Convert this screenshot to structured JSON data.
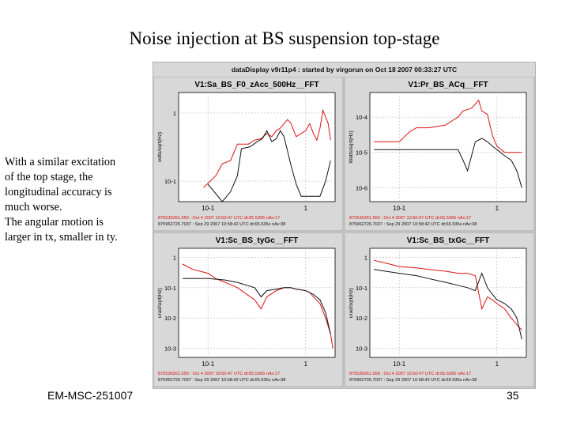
{
  "slide": {
    "title": "Noise injection at BS suspension top-stage",
    "description": [
      "With a similar excitation",
      "of the top stage, the",
      "longitudinal accuracy is",
      "much worse.",
      "The angular motion is",
      "larger in tx, smaller in ty."
    ],
    "footer_left": "EM-MSC-251007",
    "page_number": "35"
  },
  "screen": {
    "header": "dataDisplay v9r11p4 : started by virgorun on Oct 18 2007 00:33:27 UTC"
  },
  "colors": {
    "current": "#dd1111",
    "reference": "#111111",
    "panel_bg": "#ffffff",
    "frame_bg": "#d8d8d8"
  },
  "chart_data": [
    {
      "type": "line",
      "title": "V1:Sa_BS_F0_zAcc_500Hz__FFT",
      "ylabel": "volts/sqrt(Hz)",
      "xscale": "log",
      "yscale": "log",
      "xlim": [
        0.05,
        2
      ],
      "ylim": [
        0.05,
        2
      ],
      "x_ticks": [
        {
          "v": 0.1,
          "label": "10-1"
        },
        {
          "v": 1,
          "label": "1"
        }
      ],
      "y_ticks": [
        {
          "v": 1,
          "label": "1"
        },
        {
          "v": 0.1,
          "label": "10-1"
        }
      ],
      "legend": [
        "875530261.550 : Oct  4 2007 10:50:47 UTC dt:65.5365 nAv:17",
        "875962726.7037 : Sep 29 2007 10:58:42 UTC dt:65.536s nAv:38"
      ],
      "series": [
        {
          "name": "Oct 4 2007",
          "color": "#dd1111",
          "x": [
            0.09,
            0.12,
            0.14,
            0.17,
            0.2,
            0.22,
            0.26,
            0.3,
            0.35,
            0.4,
            0.45,
            0.5,
            0.55,
            0.6,
            0.65,
            0.7,
            0.8,
            0.9,
            1.0,
            1.1,
            1.2,
            1.3,
            1.4,
            1.5,
            1.7,
            1.8
          ],
          "y": [
            0.08,
            0.12,
            0.18,
            0.2,
            0.35,
            0.35,
            0.35,
            0.4,
            0.42,
            0.5,
            0.45,
            0.55,
            0.6,
            0.7,
            0.8,
            0.72,
            0.45,
            0.5,
            0.55,
            0.7,
            0.5,
            0.4,
            0.6,
            1.1,
            0.7,
            0.4
          ]
        },
        {
          "name": "Sep 29 2007",
          "color": "#111111",
          "x": [
            0.1,
            0.14,
            0.17,
            0.2,
            0.22,
            0.27,
            0.32,
            0.36,
            0.4,
            0.45,
            0.5,
            0.55,
            0.6,
            0.7,
            0.8,
            0.9,
            1.0,
            1.2,
            1.4,
            1.6,
            1.8
          ],
          "y": [
            0.09,
            0.05,
            0.07,
            0.12,
            0.3,
            0.32,
            0.38,
            0.42,
            0.55,
            0.38,
            0.42,
            0.55,
            0.45,
            0.18,
            0.09,
            0.06,
            0.06,
            0.06,
            0.06,
            0.1,
            0.2
          ]
        }
      ]
    },
    {
      "type": "line",
      "title": "V1:Pr_BS_ACq__FFT",
      "ylabel": "Watts/sqrt(Hz)",
      "xscale": "log",
      "yscale": "log",
      "xlim": [
        0.05,
        2
      ],
      "ylim": [
        4e-07,
        0.0005
      ],
      "x_ticks": [
        {
          "v": 0.1,
          "label": "10-1"
        },
        {
          "v": 1,
          "label": "1"
        }
      ],
      "y_ticks": [
        {
          "v": 0.0001,
          "label": "10-4"
        },
        {
          "v": 1e-05,
          "label": "10-5"
        },
        {
          "v": 1e-06,
          "label": "10-6"
        }
      ],
      "legend": [
        "875530261.550 : Oct  4 2007 10:50:47 UTC dt:65.5365 nAv:17",
        "875962726.7037 : Sep 29 2007 10:58:42 UTC dt:65.536s nAv:38"
      ],
      "series": [
        {
          "name": "Oct 4 2007",
          "color": "#dd1111",
          "x": [
            0.055,
            0.1,
            0.13,
            0.15,
            0.2,
            0.3,
            0.35,
            0.4,
            0.45,
            0.55,
            0.65,
            0.7,
            0.8,
            0.9,
            1.0,
            1.2,
            1.5,
            1.8
          ],
          "y": [
            2e-05,
            2e-05,
            4e-05,
            5e-05,
            5e-05,
            6e-05,
            8e-05,
            0.0001,
            0.00015,
            0.00018,
            0.0003,
            0.00015,
            0.00012,
            3e-05,
            1.5e-05,
            1e-05,
            1e-05,
            1e-05
          ]
        },
        {
          "name": "Sep 29 2007",
          "color": "#111111",
          "x": [
            0.055,
            0.1,
            0.2,
            0.3,
            0.4,
            0.45,
            0.5,
            0.55,
            0.6,
            0.7,
            0.8,
            0.9,
            1.0,
            1.2,
            1.4,
            1.6,
            1.8
          ],
          "y": [
            1.2e-05,
            1.2e-05,
            1.2e-05,
            1.2e-05,
            1.2e-05,
            6e-06,
            3e-06,
            8e-06,
            2e-05,
            2.5e-05,
            2e-05,
            1.5e-05,
            1.2e-05,
            8e-06,
            6e-06,
            3e-06,
            1e-06
          ]
        }
      ]
    },
    {
      "type": "line",
      "title": "V1:Sc_BS_tyGc__FFT",
      "ylabel": "urad/sqrt(Hz)",
      "xscale": "log",
      "yscale": "log",
      "xlim": [
        0.05,
        2
      ],
      "ylim": [
        0.0005,
        2
      ],
      "x_ticks": [
        {
          "v": 0.1,
          "label": "10-1"
        },
        {
          "v": 1,
          "label": "1"
        }
      ],
      "y_ticks": [
        {
          "v": 1,
          "label": "1"
        },
        {
          "v": 0.1,
          "label": "10-1"
        },
        {
          "v": 0.01,
          "label": "10-2"
        },
        {
          "v": 0.001,
          "label": "10-3"
        }
      ],
      "legend": [
        "875530261.550 : Oct  4 2007 10:50:47 UTC dt:65.5365 nAv:17",
        "875962726.7037 : Sep 29 2007 10:58:42 UTC dt:65.536s nAv:38"
      ],
      "series": [
        {
          "name": "Oct 4 2007",
          "color": "#dd1111",
          "x": [
            0.055,
            0.07,
            0.1,
            0.12,
            0.15,
            0.2,
            0.25,
            0.3,
            0.35,
            0.4,
            0.5,
            0.6,
            0.7,
            0.8,
            1.0,
            1.1,
            1.2,
            1.4,
            1.6,
            1.8,
            1.9
          ],
          "y": [
            0.6,
            0.4,
            0.3,
            0.2,
            0.15,
            0.1,
            0.06,
            0.04,
            0.02,
            0.05,
            0.08,
            0.1,
            0.1,
            0.09,
            0.08,
            0.07,
            0.05,
            0.03,
            0.01,
            0.003,
            0.001
          ]
        },
        {
          "name": "Sep 29 2007",
          "color": "#111111",
          "x": [
            0.055,
            0.1,
            0.15,
            0.2,
            0.25,
            0.3,
            0.35,
            0.4,
            0.5,
            0.6,
            0.7,
            0.8,
            1.0,
            1.2,
            1.4,
            1.6,
            1.8
          ],
          "y": [
            0.2,
            0.2,
            0.18,
            0.15,
            0.12,
            0.1,
            0.05,
            0.08,
            0.09,
            0.1,
            0.1,
            0.09,
            0.08,
            0.06,
            0.04,
            0.015,
            0.003
          ]
        }
      ]
    },
    {
      "type": "line",
      "title": "V1:Sc_BS_txGc__FFT",
      "ylabel": "urad/sqrt(Hz)",
      "xscale": "log",
      "yscale": "log",
      "xlim": [
        0.05,
        2
      ],
      "ylim": [
        0.0005,
        2
      ],
      "x_ticks": [
        {
          "v": 0.1,
          "label": "10-1"
        },
        {
          "v": 1,
          "label": "1"
        }
      ],
      "y_ticks": [
        {
          "v": 1,
          "label": "1"
        },
        {
          "v": 0.1,
          "label": "10-1"
        },
        {
          "v": 0.01,
          "label": "10-2"
        },
        {
          "v": 0.001,
          "label": "10-3"
        }
      ],
      "legend": [
        "875530261.550 : Oct  4 2007 10:50:47 UTC dt:65.5365 nAv:17",
        "875962726.7037 : Sep 29 2007 10:58:42 UTC dt:65.536s nAv:38"
      ],
      "series": [
        {
          "name": "Oct 4 2007",
          "color": "#dd1111",
          "x": [
            0.055,
            0.08,
            0.1,
            0.15,
            0.2,
            0.3,
            0.4,
            0.5,
            0.6,
            0.7,
            0.8,
            0.9,
            1.0,
            1.2,
            1.4,
            1.6,
            1.8
          ],
          "y": [
            0.8,
            0.6,
            0.5,
            0.45,
            0.4,
            0.35,
            0.3,
            0.3,
            0.25,
            0.02,
            0.05,
            0.04,
            0.03,
            0.02,
            0.01,
            0.006,
            0.004
          ]
        },
        {
          "name": "Sep 29 2007",
          "color": "#111111",
          "x": [
            0.055,
            0.1,
            0.15,
            0.2,
            0.3,
            0.4,
            0.5,
            0.6,
            0.7,
            0.8,
            0.9,
            1.0,
            1.2,
            1.4,
            1.6,
            1.8
          ],
          "y": [
            0.4,
            0.3,
            0.25,
            0.2,
            0.15,
            0.12,
            0.1,
            0.08,
            0.3,
            0.1,
            0.06,
            0.04,
            0.03,
            0.02,
            0.01,
            0.002
          ]
        }
      ]
    }
  ]
}
